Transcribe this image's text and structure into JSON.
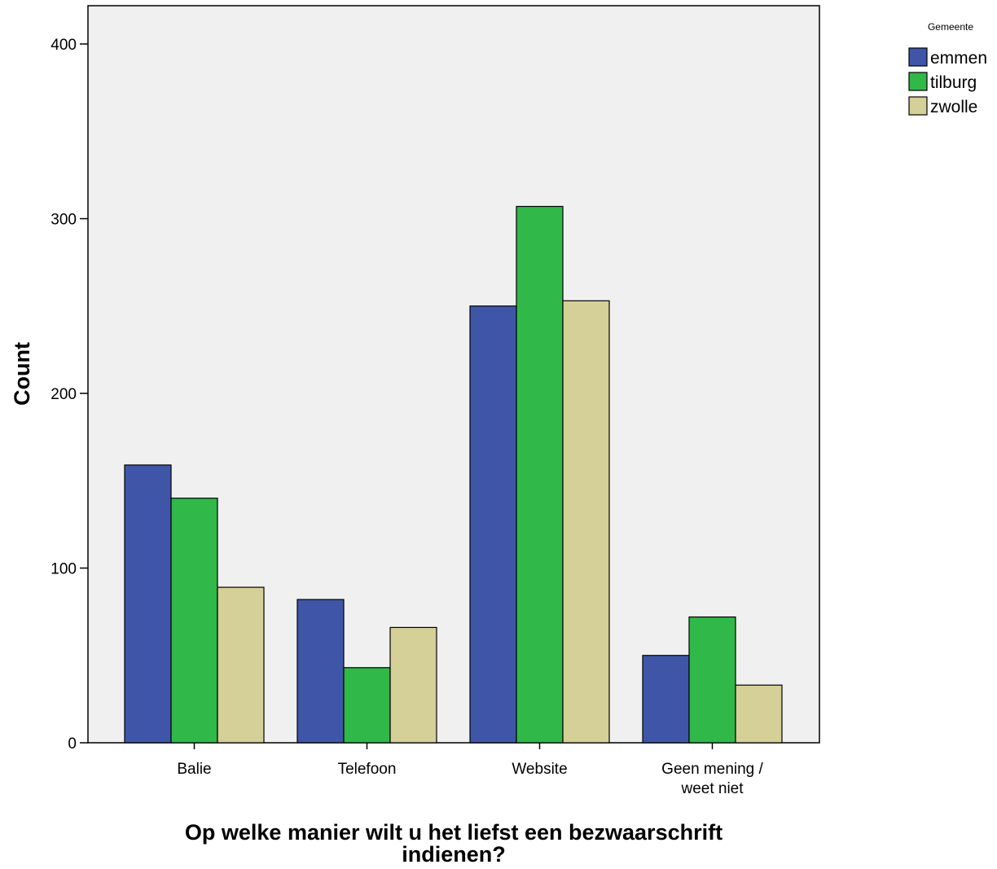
{
  "chart_data": {
    "type": "bar",
    "title": "",
    "xlabel": "Op welke manier wilt u het liefst een bezwaarschrift indienen?",
    "xlabel_lines": [
      "Op welke manier wilt u het liefst een bezwaarschrift",
      "indienen?"
    ],
    "ylabel": "Count",
    "ylim": [
      0,
      420
    ],
    "yticks": [
      0,
      100,
      200,
      300,
      400
    ],
    "categories": [
      "Balie",
      "Telefoon",
      "Website",
      "Geen mening / weet niet"
    ],
    "category_lines": [
      [
        "Balie"
      ],
      [
        "Telefoon"
      ],
      [
        "Website"
      ],
      [
        "Geen mening /",
        "weet niet"
      ]
    ],
    "legend_title": "Gemeente",
    "legend_position": "top-right",
    "grid": false,
    "series": [
      {
        "name": "emmen",
        "color": "#3f56a8",
        "values": [
          159,
          82,
          250,
          50
        ]
      },
      {
        "name": "tilburg",
        "color": "#30b848",
        "values": [
          140,
          43,
          307,
          72
        ]
      },
      {
        "name": "zwolle",
        "color": "#d5cf98",
        "values": [
          89,
          66,
          253,
          33
        ]
      }
    ],
    "plot_background": "#f0f0f0"
  }
}
